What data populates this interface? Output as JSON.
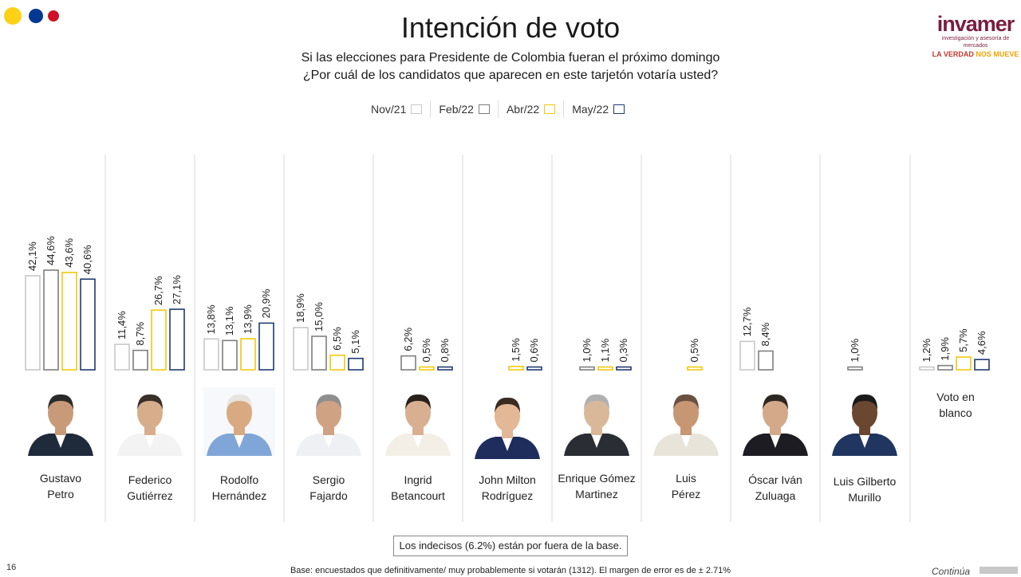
{
  "header": {
    "title": "Intención de voto",
    "subtitle_line1": "Si las elecciones para Presidente de Colombia fueran el próximo domingo",
    "subtitle_line2": "¿Por cuál de los candidatos que aparecen en este tarjetón votaría usted?",
    "flag_colors": [
      "#FCD116",
      "#003893",
      "#CE1126"
    ]
  },
  "logo": {
    "word": "invamer",
    "sub": "investigación y asesoría de mercados",
    "tag_main": "LA VERDAD ",
    "tag_hi": "NOS MUEVE"
  },
  "legend": [
    {
      "label": "Nov/21",
      "color": "#c8c8c8"
    },
    {
      "label": "Feb/22",
      "color": "#7f7f7f"
    },
    {
      "label": "Abr/22",
      "color": "#f2c80f"
    },
    {
      "label": "May/22",
      "color": "#1f3a73"
    }
  ],
  "chart_data": {
    "type": "bar",
    "categories": [
      "Gustavo Petro",
      "Federico Gutiérrez",
      "Rodolfo Hernández",
      "Sergio Fajardo",
      "Ingrid Betancourt",
      "John Milton Rodríguez",
      "Enrique Gómez Martinez",
      "Luis Pérez",
      "Óscar Iván Zuluaga",
      "Luis Gilberto Murillo",
      "Voto en blanco"
    ],
    "series": [
      {
        "name": "Nov/21",
        "values": [
          42.1,
          11.4,
          13.8,
          18.9,
          null,
          null,
          null,
          null,
          12.7,
          null,
          1.2
        ],
        "labels": [
          "42,1%",
          "11,4%",
          "13,8%",
          "18,9%",
          null,
          null,
          null,
          null,
          "12,7%",
          null,
          "1,2%"
        ]
      },
      {
        "name": "Feb/22",
        "values": [
          44.6,
          8.7,
          13.1,
          15.0,
          6.2,
          null,
          1.0,
          null,
          8.4,
          1.0,
          1.9
        ],
        "labels": [
          "44,6%",
          "8,7%",
          "13,1%",
          "15,0%",
          "6,2%",
          null,
          "1,0%",
          null,
          "8,4%",
          "1,0%",
          "1,9%"
        ]
      },
      {
        "name": "Abr/22",
        "values": [
          43.6,
          26.7,
          13.9,
          6.5,
          0.5,
          1.5,
          1.1,
          0.5,
          null,
          null,
          5.7
        ],
        "labels": [
          "43,6%",
          "26,7%",
          "13,9%",
          "6,5%",
          "0,5%",
          "1,5%",
          "1,1%",
          "0,5%",
          null,
          null,
          "5,7%"
        ]
      },
      {
        "name": "May/22",
        "values": [
          40.6,
          27.1,
          20.9,
          5.1,
          0.8,
          0.6,
          0.3,
          null,
          null,
          null,
          4.6
        ],
        "labels": [
          "40,6%",
          "27,1%",
          "20,9%",
          "5,1%",
          "0,8%",
          "0,6%",
          "0,3%",
          null,
          null,
          null,
          "4,6%"
        ]
      }
    ],
    "ylim": [
      0,
      50
    ]
  },
  "candidates": [
    {
      "line1": "Gustavo",
      "line2": "Petro"
    },
    {
      "line1": "Federico",
      "line2": "Gutiérrez"
    },
    {
      "line1": "Rodolfo",
      "line2": "Hernández"
    },
    {
      "line1": "Sergio",
      "line2": "Fajardo"
    },
    {
      "line1": "Ingrid",
      "line2": "Betancourt"
    },
    {
      "line1": "John Milton",
      "line2": "Rodríguez"
    },
    {
      "line1": "Enrique Gómez",
      "line2": "Martinez"
    },
    {
      "line1": "Luis",
      "line2": "Pérez"
    },
    {
      "line1": "Óscar Iván",
      "line2": "Zuluaga"
    },
    {
      "line1": "Luis Gilberto",
      "line2": "Murillo"
    }
  ],
  "blank_vote": {
    "line1": "Voto en",
    "line2": "blanco"
  },
  "footer": {
    "note": "Los indecisos (6.2%) están por fuera de la base.",
    "page_number": "16",
    "base_text": "Base: encuestados que definitivamente/ muy probablemente si votarán (1312). El margen de error es de ± 2.71%",
    "continue_text": "Continúa"
  }
}
